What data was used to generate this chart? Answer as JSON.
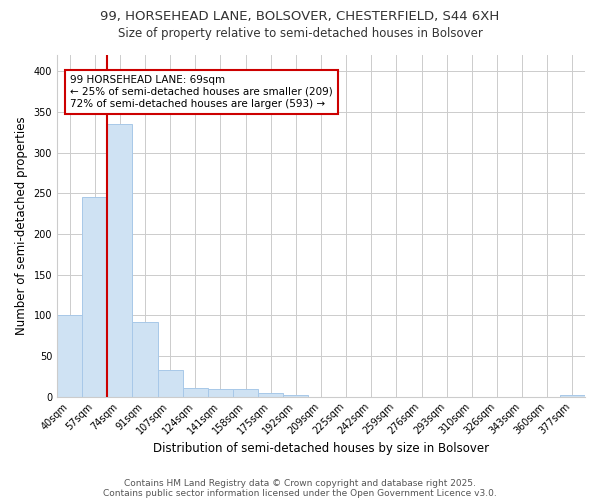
{
  "title1": "99, HORSEHEAD LANE, BOLSOVER, CHESTERFIELD, S44 6XH",
  "title2": "Size of property relative to semi-detached houses in Bolsover",
  "xlabel": "Distribution of semi-detached houses by size in Bolsover",
  "ylabel": "Number of semi-detached properties",
  "categories": [
    "40sqm",
    "57sqm",
    "74sqm",
    "91sqm",
    "107sqm",
    "124sqm",
    "141sqm",
    "158sqm",
    "175sqm",
    "192sqm",
    "209sqm",
    "225sqm",
    "242sqm",
    "259sqm",
    "276sqm",
    "293sqm",
    "310sqm",
    "326sqm",
    "343sqm",
    "360sqm",
    "377sqm"
  ],
  "values": [
    100,
    246,
    335,
    92,
    33,
    11,
    9,
    9,
    4,
    2,
    0,
    0,
    0,
    0,
    0,
    0,
    0,
    0,
    0,
    0,
    2
  ],
  "bar_color": "#cfe2f3",
  "bar_edge_color": "#a8c8e8",
  "ref_line_color": "#cc0000",
  "annotation_text": "99 HORSEHEAD LANE: 69sqm\n← 25% of semi-detached houses are smaller (209)\n72% of semi-detached houses are larger (593) →",
  "annotation_box_color": "#ffffff",
  "annotation_box_edge": "#cc0000",
  "footer1": "Contains HM Land Registry data © Crown copyright and database right 2025.",
  "footer2": "Contains public sector information licensed under the Open Government Licence v3.0.",
  "ylim": [
    0,
    420
  ],
  "yticks": [
    0,
    50,
    100,
    150,
    200,
    250,
    300,
    350,
    400
  ],
  "background_color": "#ffffff",
  "grid_color": "#cccccc"
}
